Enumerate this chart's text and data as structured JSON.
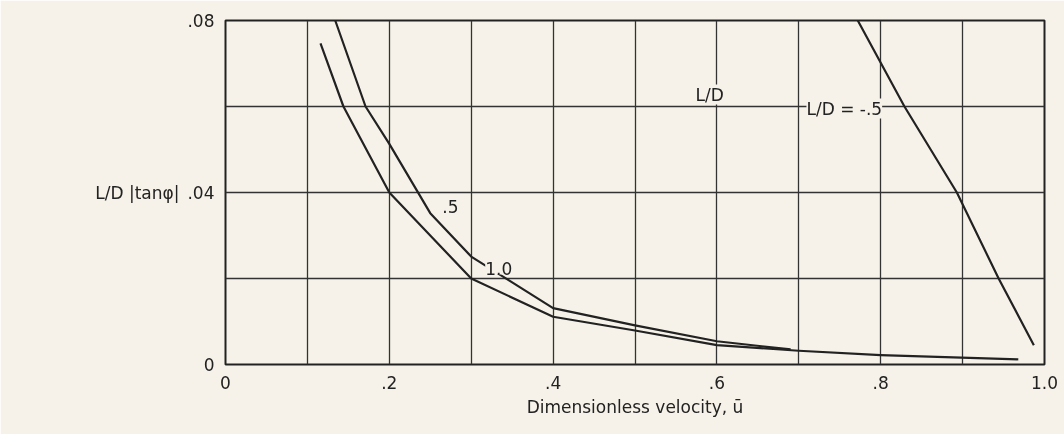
{
  "chart_data": {
    "type": "line",
    "xlabel": "Dimensionless velocity, ū",
    "ylabel": "L/D |tanφ|",
    "xlim": [
      0,
      1.0
    ],
    "ylim": [
      0,
      0.08
    ],
    "xticks": [
      0,
      {
        "value": 0.1,
        "label": null
      },
      {
        "value": 0.2,
        "label": ".2"
      },
      {
        "value": 0.3,
        "label": null
      },
      {
        "value": 0.4,
        "label": ".4"
      },
      {
        "value": 0.5,
        "label": null
      },
      {
        "value": 0.6,
        "label": ".6"
      },
      {
        "value": 0.7,
        "label": null
      },
      {
        "value": 0.8,
        "label": ".8"
      },
      {
        "value": 0.9,
        "label": null
      },
      {
        "value": 1.0,
        "label": "1.0"
      }
    ],
    "yticks": [
      0,
      {
        "value": 0.02,
        "label": null
      },
      {
        "value": 0.04,
        "label": ".04"
      },
      {
        "value": 0.06,
        "label": null
      },
      {
        "value": 0.08,
        "label": ".08"
      }
    ],
    "grid": true,
    "line_style": "solid",
    "annotations": [
      "L/D"
    ],
    "series": [
      {
        "name": ".5",
        "color": "#222222",
        "x": [
          0.134,
          0.171,
          0.2,
          0.25,
          0.3,
          0.4,
          0.5,
          0.6,
          0.69
        ],
        "values": [
          0.08,
          0.06,
          0.0513,
          0.0352,
          0.0251,
          0.0131,
          0.0091,
          0.0054,
          0.0035
        ]
      },
      {
        "name": "1.0",
        "color": "#222222",
        "x": [
          0.116,
          0.144,
          0.2,
          0.25,
          0.3,
          0.4,
          0.5,
          0.6,
          0.7,
          0.8,
          0.968
        ],
        "values": [
          0.0747,
          0.06,
          0.04,
          0.03,
          0.02,
          0.0111,
          0.0079,
          0.0045,
          0.0032,
          0.0022,
          0.0012
        ]
      },
      {
        "name": "L/D = -.5",
        "color": "#222222",
        "x": [
          0.772,
          0.829,
          0.893,
          0.944,
          0.987
        ],
        "values": [
          0.08,
          0.06,
          0.04,
          0.02,
          0.0045
        ]
      }
    ]
  }
}
